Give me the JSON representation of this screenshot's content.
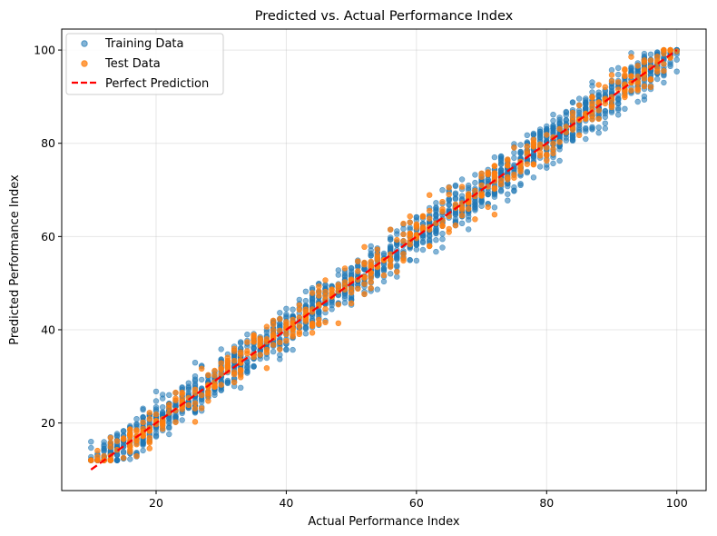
{
  "chart_data": {
    "type": "scatter",
    "title": "Predicted vs. Actual Performance Index",
    "xlabel": "Actual Performance Index",
    "ylabel": "Predicted Performance Index",
    "xlim": [
      5.5,
      104.5
    ],
    "ylim": [
      5.5,
      104.5
    ],
    "xticks": [
      20,
      40,
      60,
      80,
      100
    ],
    "yticks": [
      20,
      40,
      60,
      80,
      100
    ],
    "grid": true,
    "legend_position": "top-left",
    "series": [
      {
        "name": "Training Data",
        "type": "scatter",
        "color": "#1f77b4",
        "opacity": 0.55,
        "x_range": [
          10,
          100
        ],
        "spread": 2.2,
        "approx_points": 8000
      },
      {
        "name": "Test Data",
        "type": "scatter",
        "color": "#ff7f0e",
        "opacity": 0.75,
        "x_range": [
          10,
          100
        ],
        "spread": 2.2,
        "approx_points": 2000
      },
      {
        "name": "Perfect Prediction",
        "type": "line",
        "color": "#ff0000",
        "dash": "dashed",
        "x": [
          10,
          100
        ],
        "y": [
          10,
          100
        ]
      }
    ]
  }
}
